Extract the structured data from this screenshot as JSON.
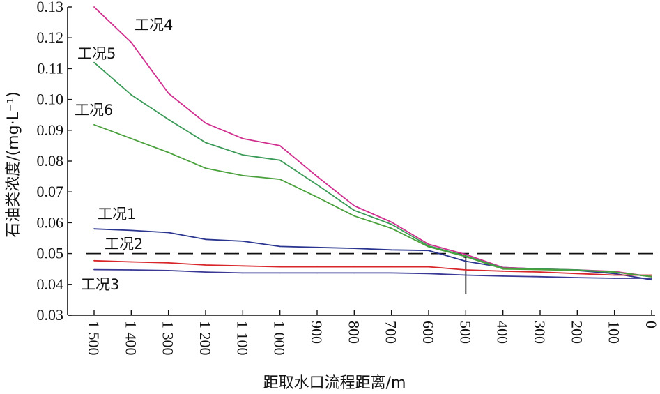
{
  "chart_data": {
    "type": "line",
    "xlabel": "距取水口流程距离/m",
    "ylabel": "石油类浓度/(mg·L⁻¹)",
    "x_reversed": true,
    "xlim": [
      0,
      1500
    ],
    "ylim": [
      0.03,
      0.13
    ],
    "x_ticks": [
      1500,
      1400,
      1300,
      1200,
      1100,
      1000,
      900,
      800,
      700,
      600,
      500,
      400,
      300,
      200,
      100,
      0
    ],
    "x_tick_labels": [
      "1 500",
      "1 400",
      "1 300",
      "1 200",
      "1 100",
      "1 000",
      "900",
      "800",
      "700",
      "600",
      "500",
      "400",
      "300",
      "200",
      "100",
      "0"
    ],
    "y_ticks": [
      0.03,
      0.04,
      0.05,
      0.06,
      0.07,
      0.08,
      0.09,
      0.1,
      0.11,
      0.12,
      0.13
    ],
    "y_tick_labels": [
      "0.03",
      "0.04",
      "0.05",
      "0.06",
      "0.07",
      "0.08",
      "0.09",
      "0.10",
      "0.11",
      "0.12",
      "0.13"
    ],
    "reference_line": {
      "y": 0.05,
      "style": "dashed",
      "color": "#111111"
    },
    "marker": {
      "x": 500,
      "style": "vertical-tick",
      "color": "#111111"
    },
    "series": [
      {
        "name": "工况1",
        "color": "#2a3590",
        "x": [
          1500,
          1400,
          1300,
          1200,
          1100,
          1000,
          900,
          800,
          700,
          600,
          500,
          400,
          300,
          200,
          100,
          0
        ],
        "y": [
          0.058,
          0.0575,
          0.0568,
          0.0546,
          0.054,
          0.0523,
          0.052,
          0.0517,
          0.0512,
          0.051,
          0.0475,
          0.0455,
          0.045,
          0.0445,
          0.0435,
          0.0415
        ]
      },
      {
        "name": "工况2",
        "color": "#d8262b",
        "x": [
          1500,
          1400,
          1300,
          1200,
          1100,
          1000,
          900,
          800,
          700,
          600,
          500,
          400,
          300,
          200,
          100,
          0
        ],
        "y": [
          0.0477,
          0.0473,
          0.047,
          0.0463,
          0.046,
          0.0457,
          0.0457,
          0.0457,
          0.0457,
          0.0457,
          0.0447,
          0.0443,
          0.044,
          0.0435,
          0.043,
          0.043
        ]
      },
      {
        "name": "工况3",
        "color": "#3a3a96",
        "x": [
          1500,
          1400,
          1300,
          1200,
          1100,
          1000,
          900,
          800,
          700,
          600,
          500,
          400,
          300,
          200,
          100,
          0
        ],
        "y": [
          0.0448,
          0.0447,
          0.0445,
          0.044,
          0.0437,
          0.0437,
          0.0437,
          0.0437,
          0.0437,
          0.0435,
          0.043,
          0.0427,
          0.0425,
          0.0422,
          0.042,
          0.042
        ]
      },
      {
        "name": "工况4",
        "color": "#cf2f8e",
        "x": [
          1500,
          1400,
          1300,
          1200,
          1100,
          1000,
          900,
          800,
          700,
          600,
          500,
          400,
          300,
          200,
          100,
          0
        ],
        "y": [
          0.13,
          0.1185,
          0.102,
          0.0923,
          0.0873,
          0.085,
          0.075,
          0.0655,
          0.0602,
          0.053,
          0.0497,
          0.0455,
          0.045,
          0.0447,
          0.0442,
          0.0425
        ]
      },
      {
        "name": "工况5",
        "color": "#3a9a57",
        "x": [
          1500,
          1400,
          1300,
          1200,
          1100,
          1000,
          900,
          800,
          700,
          600,
          500,
          400,
          300,
          200,
          100,
          0
        ],
        "y": [
          0.112,
          0.1015,
          0.0935,
          0.086,
          0.082,
          0.0803,
          0.0723,
          0.064,
          0.0595,
          0.0525,
          0.0492,
          0.0453,
          0.045,
          0.0447,
          0.044,
          0.0425
        ]
      },
      {
        "name": "工况6",
        "color": "#4aa13c",
        "x": [
          1500,
          1400,
          1300,
          1200,
          1100,
          1000,
          900,
          800,
          700,
          600,
          500,
          400,
          300,
          200,
          100,
          0
        ],
        "y": [
          0.0918,
          0.0873,
          0.0828,
          0.0777,
          0.0753,
          0.0741,
          0.0683,
          0.0622,
          0.0582,
          0.0522,
          0.049,
          0.045,
          0.0448,
          0.0445,
          0.044,
          0.0425
        ]
      }
    ]
  }
}
